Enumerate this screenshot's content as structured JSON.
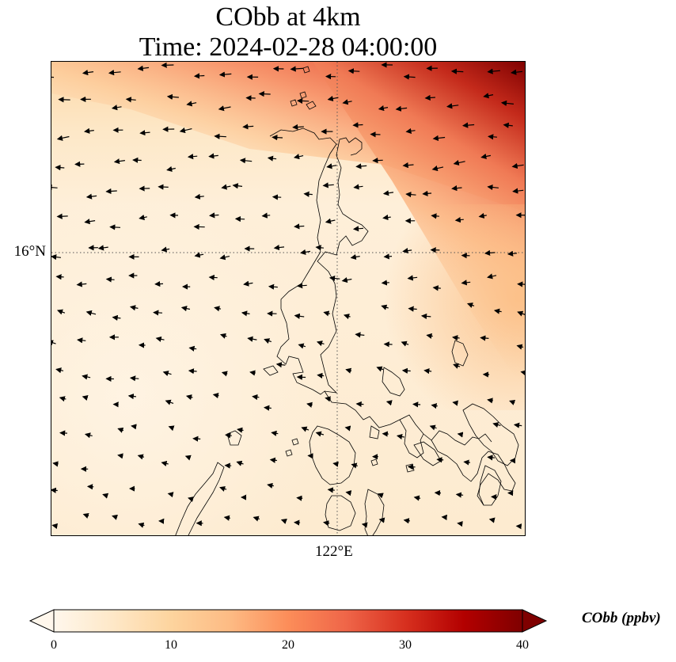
{
  "title": {
    "line1": "CObb at 4km",
    "line2": "Time: 2024-02-28 04:00:00"
  },
  "map": {
    "variable": "CObb",
    "level": "4km",
    "region": "Luzon, Philippines",
    "lat_gridline_label": "16°N",
    "lon_gridline_label": "122°E",
    "gridline_style": "dotted",
    "wind_vectors": "westward arrows (northeast monsoon flow)"
  },
  "colorbar": {
    "label": "CObb (ppbv)",
    "min": 0,
    "max": 40,
    "ticks": [
      "0",
      "10",
      "20",
      "30",
      "40"
    ],
    "colormap": "OrRd",
    "extend": "both",
    "colors": [
      "#fff7ec",
      "#fee8c8",
      "#fdd49e",
      "#fdbb84",
      "#fc8d59",
      "#ef6548",
      "#d7301f",
      "#b30000",
      "#7f0000"
    ]
  }
}
